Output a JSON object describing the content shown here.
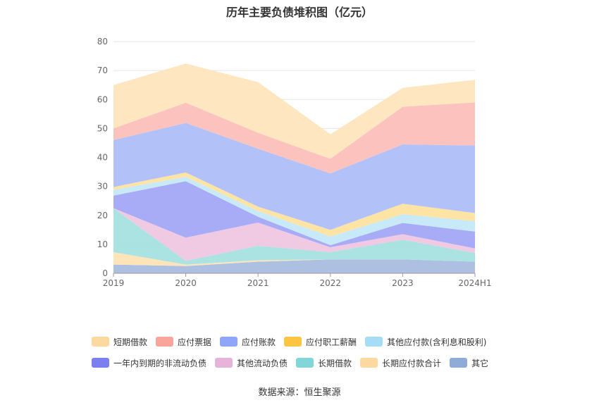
{
  "title": "历年主要负债堆积图（亿元）",
  "source": "数据来源：恒生聚源",
  "chart_data": {
    "type": "area",
    "stacked": true,
    "title": "历年主要负债堆积图（亿元）",
    "categories": [
      "2019",
      "2020",
      "2021",
      "2022",
      "2023",
      "2024H1"
    ],
    "ylim": [
      0,
      80
    ],
    "yticks": [
      0,
      10,
      20,
      30,
      40,
      50,
      60,
      70,
      80
    ],
    "grid": true,
    "legend_position": "bottom",
    "series": [
      {
        "name": "其它",
        "color": "#a9bde0",
        "values": [
          3.0,
          2.5,
          4.0,
          4.8,
          4.8,
          4.0
        ]
      },
      {
        "name": "长期应付款合计",
        "color": "#fde3b5",
        "values": [
          4.3,
          0.5,
          0.5,
          0.0,
          0.0,
          0.0
        ]
      },
      {
        "name": "长期借款",
        "color": "#a7e2e2",
        "values": [
          15.2,
          1.3,
          5.0,
          2.5,
          6.8,
          3.0
        ]
      },
      {
        "name": "其他流动负债",
        "color": "#efc6e2",
        "values": [
          0.0,
          8.0,
          8.0,
          1.7,
          1.9,
          1.6
        ]
      },
      {
        "name": "一年内到期的非流动负债",
        "color": "#a3a7f5",
        "values": [
          4.3,
          19.5,
          2.0,
          0.7,
          3.9,
          5.8
        ]
      },
      {
        "name": "其他应付款(含利息和股利)",
        "color": "#c5e8f8",
        "values": [
          2.0,
          1.5,
          2.0,
          3.0,
          3.0,
          3.6
        ]
      },
      {
        "name": "应付职工薪酬",
        "color": "#fde3a0",
        "values": [
          1.0,
          1.5,
          1.5,
          2.3,
          3.6,
          2.8
        ]
      },
      {
        "name": "应付账款",
        "color": "#aebff9",
        "values": [
          16.2,
          17.1,
          20.0,
          19.5,
          20.5,
          23.3
        ]
      },
      {
        "name": "应付票据",
        "color": "#fcc0ba",
        "values": [
          4.0,
          7.0,
          5.5,
          5.0,
          13.0,
          14.9
        ]
      },
      {
        "name": "短期借款",
        "color": "#fde5bd",
        "values": [
          15.0,
          13.5,
          17.5,
          8.5,
          6.5,
          7.8
        ]
      }
    ]
  },
  "legend": {
    "row1": [
      {
        "label": "短期借款",
        "color": "#fdd9a0"
      },
      {
        "label": "应付票据",
        "color": "#f9a59b"
      },
      {
        "label": "应付账款",
        "color": "#8ea6f7"
      },
      {
        "label": "应付职工薪酬",
        "color": "#fbc53f"
      },
      {
        "label": "其他应付款(含利息和股利)",
        "color": "#a6ddf6"
      }
    ],
    "row2": [
      {
        "label": "一年内到期的非流动负债",
        "color": "#7b7ff0"
      },
      {
        "label": "其他流动负债",
        "color": "#e6b4d8"
      },
      {
        "label": "长期借款",
        "color": "#83d6d8"
      },
      {
        "label": "长期应付款合计",
        "color": "#fdd9a0"
      },
      {
        "label": "其它",
        "color": "#8fabd7"
      }
    ]
  }
}
